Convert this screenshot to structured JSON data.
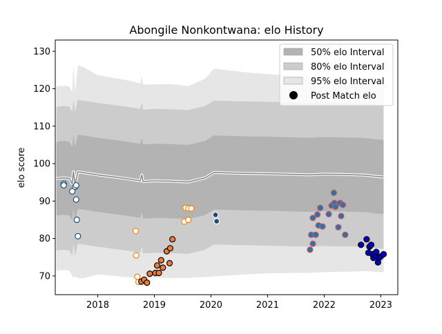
{
  "chart_data": {
    "type": "scatter",
    "title": "Abongile Nonkontwana: elo History",
    "xlabel": "",
    "ylabel": "elo score",
    "xlim": [
      2017.25,
      2023.3
    ],
    "ylim": [
      65,
      133
    ],
    "x_ticks": [
      2018,
      2019,
      2020,
      2021,
      2022,
      2023
    ],
    "x_tick_labels": [
      "2018",
      "2019",
      "2020",
      "2021",
      "2022",
      "2023"
    ],
    "y_ticks": [
      70,
      80,
      90,
      100,
      110,
      120,
      130
    ],
    "y_tick_labels": [
      "70",
      "80",
      "90",
      "100",
      "110",
      "120",
      "130"
    ],
    "grid": false,
    "legend_position": "top-right",
    "legend": [
      {
        "label": "50% elo Interval",
        "kind": "patch",
        "color": "#b3b3b3"
      },
      {
        "label": "80% elo Interval",
        "kind": "patch",
        "color": "#cccccc"
      },
      {
        "label": "95% elo Interval",
        "kind": "patch",
        "color": "#e6e6e6"
      },
      {
        "label": "Post Match elo",
        "kind": "marker",
        "color": "#000000"
      }
    ],
    "bands": {
      "x": [
        2017.27,
        2017.4,
        2017.5,
        2017.55,
        2017.57,
        2017.6,
        2017.65,
        2017.75,
        2018.0,
        2018.3,
        2018.55,
        2018.75,
        2018.78,
        2018.8,
        2019.0,
        2019.3,
        2019.6,
        2019.9,
        2020.05,
        2020.1,
        2020.6,
        2021.0,
        2021.5,
        2021.75,
        2022.0,
        2022.3,
        2022.6,
        2022.75,
        2022.9,
        2023.0,
        2023.05
      ],
      "center": [
        96.0,
        96.2,
        96.0,
        94.6,
        97.8,
        94.5,
        97.8,
        97.6,
        97.0,
        96.4,
        95.9,
        95.4,
        97.0,
        95.2,
        95.4,
        95.3,
        95.1,
        96.2,
        97.6,
        97.6,
        97.4,
        97.3,
        97.1,
        97.0,
        97.2,
        97.1,
        97.0,
        96.9,
        96.6,
        96.5,
        96.4
      ],
      "half50": [
        9.8,
        9.9,
        9.8,
        9.8,
        9.9,
        9.8,
        9.9,
        9.9,
        9.9,
        9.9,
        9.9,
        9.9,
        9.9,
        9.9,
        9.9,
        9.9,
        9.9,
        9.9,
        9.9,
        9.9,
        9.9,
        9.9,
        9.9,
        9.9,
        9.9,
        9.9,
        9.9,
        9.9,
        9.9,
        9.9,
        9.9
      ],
      "half80": [
        19.2,
        19.2,
        19.2,
        19.2,
        19.2,
        19.2,
        19.2,
        19.2,
        19.2,
        19.2,
        19.2,
        19.2,
        19.2,
        19.2,
        19.2,
        19.2,
        19.2,
        19.2,
        19.2,
        19.2,
        19.2,
        19.2,
        19.2,
        19.2,
        19.2,
        19.2,
        19.2,
        19.2,
        19.2,
        19.2,
        19.2
      ],
      "half95": [
        24.6,
        24.6,
        24.6,
        24.6,
        28.4,
        24.6,
        28.4,
        28.2,
        26.6,
        26.4,
        26.3,
        26.0,
        26.4,
        25.9,
        25.8,
        25.9,
        25.6,
        26.5,
        27.7,
        27.7,
        27.0,
        26.6,
        26.3,
        26.2,
        26.2,
        26.0,
        25.8,
        25.6,
        25.5,
        25.5,
        25.4
      ]
    },
    "series": [
      {
        "fill": "#ffffff",
        "edge": "#1f4e79",
        "points": [
          [
            2017.4,
            94.6
          ],
          [
            2017.4,
            94.2
          ],
          [
            2017.55,
            92.6
          ],
          [
            2017.6,
            93.8
          ],
          [
            2017.62,
            94.2
          ],
          [
            2017.62,
            90.4
          ],
          [
            2017.63,
            85.0
          ],
          [
            2017.65,
            80.6
          ]
        ]
      },
      {
        "fill": "#ffffff",
        "edge": "#ff7f0e",
        "points": [
          [
            2018.67,
            82.0
          ],
          [
            2018.68,
            75.5
          ],
          [
            2018.7,
            69.8
          ],
          [
            2018.72,
            68.4
          ],
          [
            2019.53,
            84.5
          ],
          [
            2019.55,
            88.2
          ],
          [
            2019.6,
            85.0
          ],
          [
            2019.6,
            88.0
          ],
          [
            2019.65,
            88.0
          ]
        ]
      },
      {
        "fill": "#1f4e79",
        "edge": "#ffffff",
        "points": [
          [
            2020.08,
            86.3
          ],
          [
            2020.1,
            84.6
          ]
        ]
      },
      {
        "fill": "#ed7d31",
        "edge": "#000000",
        "points": [
          [
            2018.77,
            68.5
          ],
          [
            2018.82,
            69.0
          ],
          [
            2018.87,
            68.2
          ],
          [
            2018.92,
            70.6
          ],
          [
            2019.02,
            70.8
          ],
          [
            2019.05,
            72.8
          ],
          [
            2019.08,
            70.8
          ],
          [
            2019.12,
            74.2
          ],
          [
            2019.15,
            72.2
          ],
          [
            2019.22,
            76.6
          ],
          [
            2019.27,
            73.4
          ],
          [
            2019.28,
            77.4
          ],
          [
            2019.32,
            79.8
          ]
        ]
      },
      {
        "fill": "#1f77b4",
        "edge": "#d9534f",
        "points": [
          [
            2021.75,
            77.0
          ],
          [
            2021.77,
            81.0
          ],
          [
            2021.8,
            85.5
          ],
          [
            2021.8,
            78.6
          ],
          [
            2021.85,
            81.0
          ],
          [
            2021.88,
            86.4
          ],
          [
            2021.9,
            83.5
          ],
          [
            2021.93,
            88.2
          ],
          [
            2021.97,
            83.2
          ],
          [
            2022.08,
            86.5
          ],
          [
            2022.13,
            88.8
          ],
          [
            2022.17,
            92.2
          ],
          [
            2022.18,
            89.5
          ],
          [
            2022.2,
            88.5
          ],
          [
            2022.25,
            83.0
          ],
          [
            2022.28,
            89.5
          ],
          [
            2022.3,
            86.0
          ],
          [
            2022.33,
            89.0
          ],
          [
            2022.37,
            81.0
          ]
        ]
      },
      {
        "fill": "#0000cd",
        "edge": "#000000",
        "points": [
          [
            2022.65,
            78.3
          ],
          [
            2022.75,
            79.8
          ],
          [
            2022.78,
            76.2
          ],
          [
            2022.8,
            77.8
          ],
          [
            2022.83,
            78.3
          ],
          [
            2022.85,
            75.8
          ],
          [
            2022.87,
            74.8
          ],
          [
            2022.9,
            75.6
          ],
          [
            2022.92,
            76.4
          ],
          [
            2022.95,
            73.6
          ],
          [
            2022.97,
            74.8
          ],
          [
            2023.0,
            75.2
          ],
          [
            2023.05,
            75.8
          ]
        ]
      }
    ]
  }
}
